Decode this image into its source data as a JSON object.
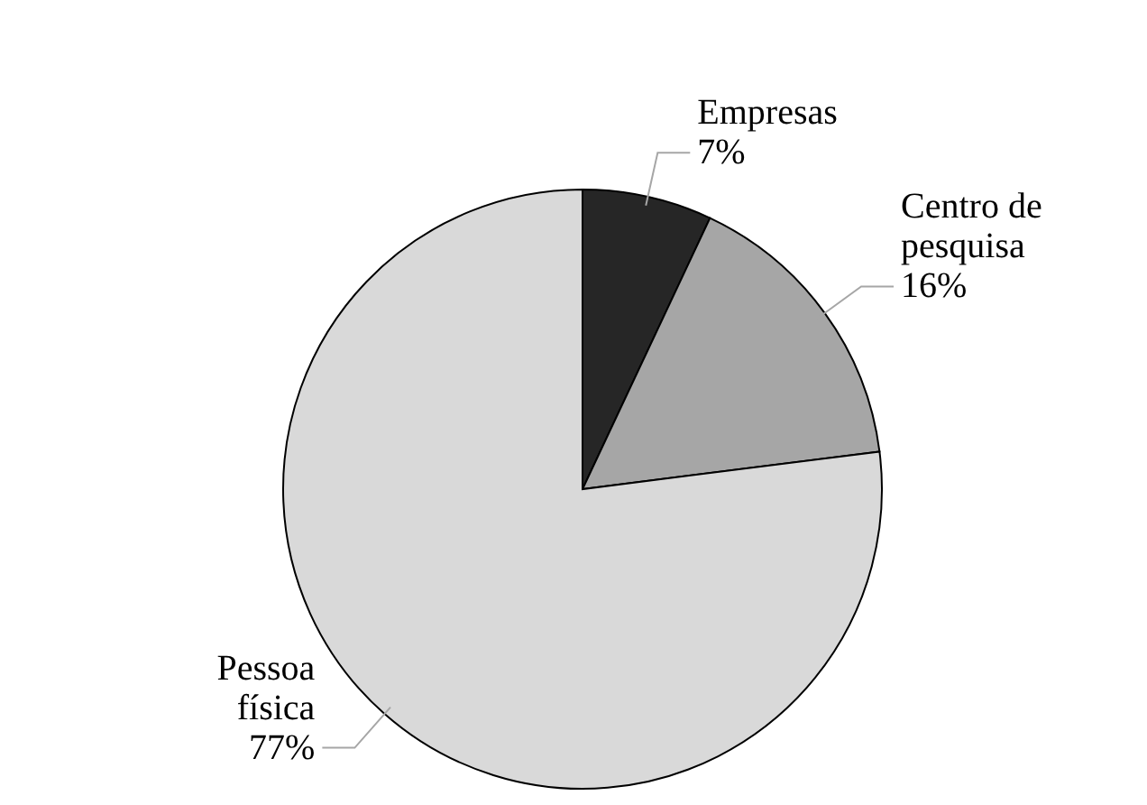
{
  "chart_data": {
    "type": "pie",
    "categories": [
      "Empresas",
      "Centro de pesquisa",
      "Pessoa física"
    ],
    "values": [
      7,
      16,
      77
    ],
    "colors": [
      "#262626",
      "#a6a6a6",
      "#d9d9d9"
    ],
    "value_labels": [
      "7%",
      "16%",
      "77%"
    ]
  }
}
